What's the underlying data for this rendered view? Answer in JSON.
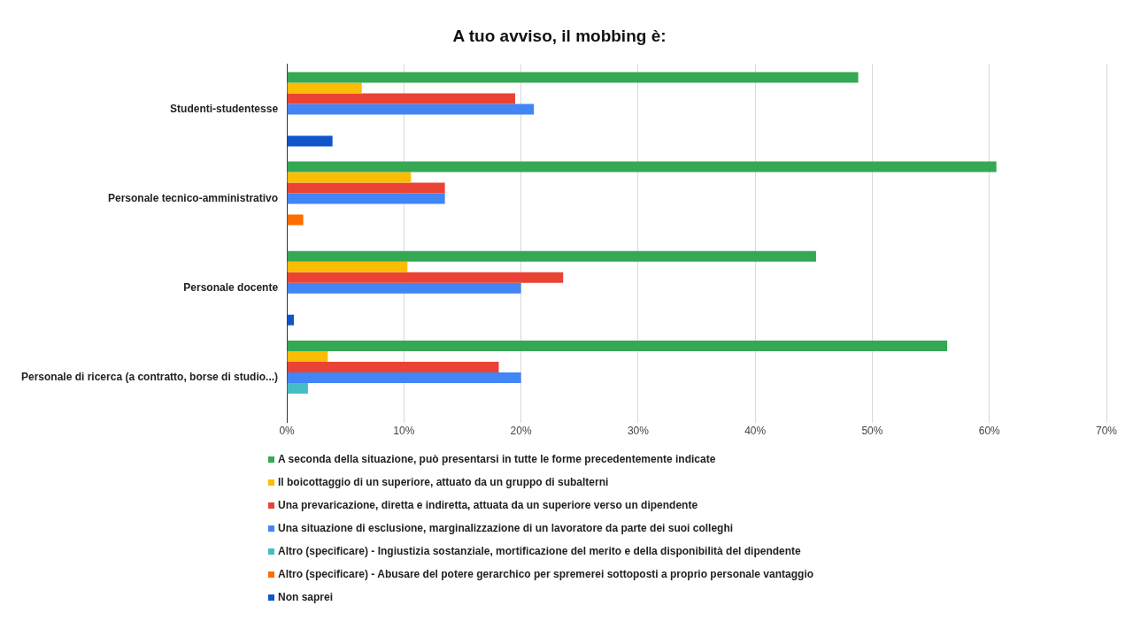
{
  "chart_data": {
    "type": "bar",
    "orientation": "horizontal",
    "title": "A tuo avviso, il mobbing è:",
    "categories": [
      "Studenti-studentesse",
      "Personale tecnico-amministrativo",
      "Personale docente",
      "Personale di ricerca (a contratto, borse di studio...)"
    ],
    "series": [
      {
        "name": "A seconda della situazione, può presentarsi in tutte le forme precedentemente indicate",
        "color": "#34a853",
        "values": [
          48.8,
          60.6,
          45.2,
          56.4
        ]
      },
      {
        "name": "Il boicottaggio di un superiore, attuato da un gruppo di subalterni",
        "color": "#fbbc04",
        "values": [
          6.4,
          10.6,
          10.3,
          3.5
        ]
      },
      {
        "name": "Una prevaricazione, diretta e indiretta, attuata da un superiore verso un dipendente",
        "color": "#ea4335",
        "values": [
          19.5,
          13.5,
          23.6,
          18.1
        ]
      },
      {
        "name": "Una situazione di esclusione, marginalizzazione di un lavoratore da parte dei suoi colleghi",
        "color": "#4285f4",
        "values": [
          21.1,
          13.5,
          20.0,
          20.0
        ]
      },
      {
        "name": "Altro (specificare) - Ingiustizia sostanziale, mortificazione del merito e della disponibilità del dipendente",
        "color": "#46bdc6",
        "values": [
          null,
          null,
          null,
          1.8
        ]
      },
      {
        "name": "Altro (specificare) - Abusare del potere gerarchico per spremerei sottoposti a proprio personale vantaggio",
        "color": "#ff6d01",
        "values": [
          null,
          1.4,
          null,
          null
        ]
      },
      {
        "name": "Non saprei",
        "color": "#1155cc",
        "values": [
          3.9,
          null,
          0.6,
          null
        ]
      }
    ],
    "xlim": [
      0,
      70
    ],
    "xticks": [
      {
        "value": 0,
        "label": "0%"
      },
      {
        "value": 10,
        "label": "10%"
      },
      {
        "value": 20,
        "label": "20%"
      },
      {
        "value": 30,
        "label": "30%"
      },
      {
        "value": 40,
        "label": "40%"
      },
      {
        "value": 50,
        "label": "50%"
      },
      {
        "value": 60,
        "label": "60%"
      },
      {
        "value": 70,
        "label": "70%"
      }
    ],
    "grid": "x",
    "legend": "bottom"
  }
}
